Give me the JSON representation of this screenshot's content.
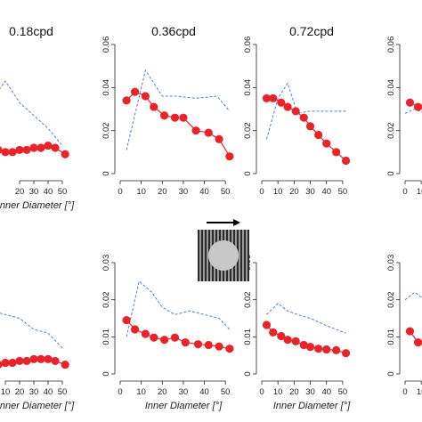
{
  "chart_data": [
    {
      "type": "line",
      "title": "0.18cpd",
      "xlabel": "Inner Diameter [°]",
      "xlim": [
        0,
        55
      ],
      "ylim": [
        0,
        0.06
      ],
      "xticks": [
        20,
        30,
        40,
        50
      ],
      "yticks": [],
      "series": [
        {
          "style": "dashed",
          "x": [
            0,
            10,
            20,
            30,
            40,
            50
          ],
          "y": [
            0.034,
            0.043,
            0.033,
            0.027,
            0.021,
            0.013
          ]
        },
        {
          "style": "markers",
          "x": [
            0,
            5,
            10,
            15,
            20,
            25,
            30,
            35,
            40,
            45,
            52
          ],
          "y": [
            0.013,
            0.011,
            0.01,
            0.01,
            0.011,
            0.011,
            0.012,
            0.012,
            0.013,
            0.012,
            0.009
          ]
        }
      ]
    },
    {
      "type": "line",
      "title": "0.36cpd",
      "xlabel": "",
      "xlim": [
        0,
        55
      ],
      "ylim": [
        0,
        0.06
      ],
      "xticks": [
        0,
        10,
        20,
        30,
        40,
        50
      ],
      "yticks": [
        0,
        0.02,
        0.04,
        0.06
      ],
      "series": [
        {
          "style": "dashed",
          "x": [
            3,
            12,
            20,
            27,
            36,
            46,
            52
          ],
          "y": [
            0.011,
            0.048,
            0.036,
            0.036,
            0.035,
            0.036,
            0.029
          ]
        },
        {
          "style": "markers",
          "x": [
            3,
            7,
            12,
            16,
            21,
            26,
            30,
            36,
            42,
            47,
            52
          ],
          "y": [
            0.034,
            0.038,
            0.036,
            0.031,
            0.027,
            0.026,
            0.026,
            0.02,
            0.019,
            0.016,
            0.008
          ]
        }
      ]
    },
    {
      "type": "line",
      "title": "0.72cpd",
      "xlabel": "",
      "xlim": [
        0,
        55
      ],
      "ylim": [
        0,
        0.06
      ],
      "xticks": [
        0,
        10,
        20,
        30,
        40,
        50
      ],
      "yticks": [
        0,
        0.02,
        0.04,
        0.06
      ],
      "series": [
        {
          "style": "dashed",
          "x": [
            3,
            10,
            16,
            22,
            30,
            40,
            52
          ],
          "y": [
            0.016,
            0.035,
            0.042,
            0.028,
            0.029,
            0.029,
            0.029
          ]
        },
        {
          "style": "markers",
          "x": [
            3,
            7,
            12,
            16,
            21,
            26,
            30,
            35,
            40,
            46,
            52
          ],
          "y": [
            0.035,
            0.035,
            0.033,
            0.031,
            0.029,
            0.026,
            0.022,
            0.018,
            0.014,
            0.01,
            0.006
          ]
        }
      ]
    },
    {
      "type": "line",
      "title": "",
      "xlabel": "",
      "xlim": [
        0,
        55
      ],
      "ylim": [
        0,
        0.06
      ],
      "xticks": [
        0,
        10
      ],
      "yticks": [
        0,
        0.02,
        0.04,
        0.06
      ],
      "series": [
        {
          "style": "dashed",
          "x": [
            0,
            6,
            12
          ],
          "y": [
            0.028,
            0.03,
            0.028
          ]
        },
        {
          "style": "markers",
          "x": [
            3,
            8,
            13
          ],
          "y": [
            0.033,
            0.031,
            0.03
          ]
        }
      ]
    },
    {
      "type": "line",
      "title": "",
      "xlabel": "Inner Diameter [°]",
      "xlim": [
        0,
        55
      ],
      "ylim": [
        0,
        0.03
      ],
      "xticks": [
        10,
        20,
        30,
        40,
        50
      ],
      "yticks": [],
      "series": [
        {
          "style": "dashed",
          "x": [
            0,
            10,
            20,
            30,
            40,
            50
          ],
          "y": [
            0.017,
            0.016,
            0.015,
            0.012,
            0.011,
            0.007
          ]
        },
        {
          "style": "markers",
          "x": [
            0,
            5,
            10,
            15,
            20,
            25,
            30,
            35,
            40,
            45,
            52
          ],
          "y": [
            0.0025,
            0.0025,
            0.003,
            0.003,
            0.0035,
            0.0035,
            0.004,
            0.004,
            0.004,
            0.0035,
            0.0025
          ]
        }
      ]
    },
    {
      "type": "line",
      "title": "",
      "xlabel": "Inner Diameter [°]",
      "xlim": [
        0,
        55
      ],
      "ylim": [
        0,
        0.03
      ],
      "xticks": [
        0,
        10,
        20,
        30,
        40,
        50
      ],
      "yticks": [
        0,
        0.01,
        0.02,
        0.03
      ],
      "series": [
        {
          "style": "dashed",
          "x": [
            3,
            9,
            15,
            20,
            26,
            33,
            40,
            47,
            52
          ],
          "y": [
            0.01,
            0.025,
            0.022,
            0.018,
            0.016,
            0.017,
            0.016,
            0.015,
            0.012
          ]
        },
        {
          "style": "markers",
          "x": [
            3,
            7,
            12,
            16,
            21,
            26,
            31,
            37,
            42,
            47,
            52
          ],
          "y": [
            0.0145,
            0.012,
            0.0108,
            0.0098,
            0.0092,
            0.0098,
            0.0085,
            0.008,
            0.0078,
            0.0074,
            0.0068
          ]
        }
      ]
    },
    {
      "type": "line",
      "title": "",
      "xlabel": "Inner Diameter [°]",
      "xlim": [
        0,
        55
      ],
      "ylim": [
        0,
        0.03
      ],
      "xticks": [
        0,
        10,
        20,
        30,
        40,
        50
      ],
      "yticks": [
        0,
        0.01,
        0.02,
        0.03
      ],
      "series": [
        {
          "style": "dashed",
          "x": [
            3,
            10,
            16,
            22,
            30,
            40,
            52
          ],
          "y": [
            0.016,
            0.019,
            0.017,
            0.016,
            0.015,
            0.013,
            0.011
          ]
        },
        {
          "style": "markers",
          "x": [
            3,
            7,
            12,
            16,
            21,
            26,
            30,
            35,
            40,
            46,
            52
          ],
          "y": [
            0.0132,
            0.0112,
            0.0102,
            0.0092,
            0.0088,
            0.0078,
            0.0073,
            0.0068,
            0.0066,
            0.0064,
            0.0056
          ]
        }
      ]
    },
    {
      "type": "line",
      "title": "",
      "xlabel": "Im",
      "xlim": [
        0,
        55
      ],
      "ylim": [
        0,
        0.03
      ],
      "xticks": [
        0,
        10
      ],
      "yticks": [
        0,
        0.01,
        0.02,
        0.03
      ],
      "series": [
        {
          "style": "dashed",
          "x": [
            0,
            6,
            12
          ],
          "y": [
            0.02,
            0.022,
            0.02
          ]
        },
        {
          "style": "markers",
          "x": [
            3,
            8,
            13
          ],
          "y": [
            0.0115,
            0.0085,
            0.0082
          ]
        }
      ]
    }
  ],
  "colors": {
    "markers": "#e8232a",
    "dashed": "#4a7fd8",
    "axis": "#222222"
  },
  "stimulus": {
    "icon": "grating-annulus-icon",
    "arrow": "arrow-right-icon"
  }
}
